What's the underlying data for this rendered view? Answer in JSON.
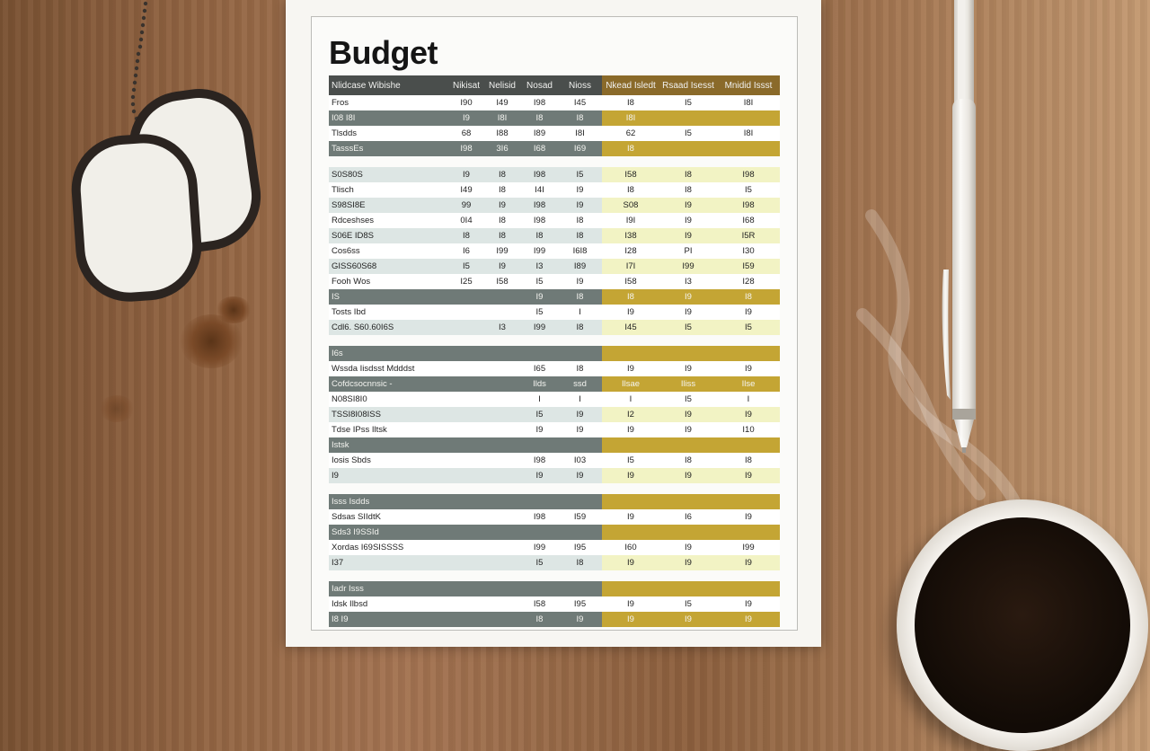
{
  "document": {
    "title": "Budget",
    "header": [
      "Nlidcase Wibishe",
      "Nikisat",
      "Nelisid",
      "Nosad",
      "Nioss",
      "Nkead Isledt",
      "Rsaad Isesst",
      "Mnidid Issst"
    ],
    "row_colors": {
      "white": "#ffffff",
      "light": "#dde6e4",
      "gray": "#6f7a77",
      "yellow_light": "#f2f3c4",
      "yellow_mid": "#e6e59a",
      "gold": "#c4a534"
    },
    "rows": [
      {
        "style": "white",
        "cells": [
          "Fros",
          "I90",
          "I49",
          "I98",
          "I45",
          "I8",
          "I5",
          "I8I"
        ]
      },
      {
        "style": "gray",
        "cells": [
          "I08 I8I",
          "I9",
          "I8I",
          "I8",
          "I8",
          "I8I",
          "",
          ""
        ]
      },
      {
        "style": "white",
        "cells": [
          "Tlsdds",
          "68",
          "I88",
          "I89",
          "I8I",
          "62",
          "I5",
          "I8I"
        ]
      },
      {
        "style": "gray",
        "cells": [
          "TasssEs",
          "I98",
          "3I6",
          "I68",
          "I69",
          "I8",
          "",
          ""
        ]
      },
      {
        "style": "spacer"
      },
      {
        "style": "light",
        "cells": [
          "S0S80S",
          "I9",
          "I8",
          "I98",
          "I5",
          "I58",
          "I8",
          "I98"
        ]
      },
      {
        "style": "white",
        "cells": [
          "Tlisch",
          "I49",
          "I8",
          "I4I",
          "I9",
          "I8",
          "I8",
          "I5"
        ]
      },
      {
        "style": "light",
        "cells": [
          "S98SI8E",
          "99",
          "I9",
          "I98",
          "I9",
          "S08",
          "I9",
          "I98"
        ]
      },
      {
        "style": "white",
        "cells": [
          "Rdceshses",
          "0I4",
          "I8",
          "I98",
          "I8",
          "I9I",
          "I9",
          "I68"
        ]
      },
      {
        "style": "light",
        "cells": [
          "S06E ID8S",
          "I8",
          "I8",
          "I8",
          "I8",
          "I38",
          "I9",
          "I5R"
        ]
      },
      {
        "style": "white",
        "cells": [
          "Cos6ss",
          "I6",
          "I99",
          "I99",
          "I6I8",
          "I28",
          "PI",
          "I30"
        ]
      },
      {
        "style": "light",
        "cells": [
          "GISS60S68",
          "I5",
          "I9",
          "I3",
          "I89",
          "I7I",
          "I99",
          "I59"
        ]
      },
      {
        "style": "white",
        "cells": [
          "Fooh Wos",
          "I25",
          "I58",
          "I5",
          "I9",
          "I58",
          "I3",
          "I28"
        ]
      },
      {
        "style": "gray",
        "cells": [
          "IS",
          "",
          "",
          "I9",
          "I8",
          "I8",
          "I9",
          "I8"
        ]
      },
      {
        "style": "white",
        "cells": [
          "Tosts Ibd",
          "",
          "",
          "I5",
          "I",
          "I9",
          "I9",
          "I9"
        ]
      },
      {
        "style": "light",
        "cells": [
          "Cdl6. S60.60I6S",
          "",
          "I3",
          "I99",
          "I8",
          "I45",
          "I5",
          "I5"
        ]
      },
      {
        "style": "spacer"
      },
      {
        "style": "gray",
        "cells": [
          "I6s",
          "",
          "",
          "",
          "",
          "",
          "",
          ""
        ]
      },
      {
        "style": "white",
        "cells": [
          "Wssda Iisdsst Mdddst",
          "",
          "",
          "I65",
          "I8",
          "I9",
          "I9",
          "I9"
        ]
      },
      {
        "style": "gray",
        "cells": [
          "Cofdcsocnnsic -",
          "",
          "",
          "Ilds",
          "ssd",
          "Ilsae",
          "Iliss",
          "Ilse"
        ]
      },
      {
        "style": "white",
        "cells": [
          "N08SI8I0",
          "",
          "",
          "I",
          "I",
          "I",
          "I5",
          "I"
        ]
      },
      {
        "style": "light",
        "cells": [
          "TSSI8I08ISS",
          "",
          "",
          "I5",
          "I9",
          "I2",
          "I9",
          "I9"
        ]
      },
      {
        "style": "white",
        "cells": [
          "Tdse IPss Iltsk",
          "",
          "",
          "I9",
          "I9",
          "I9",
          "I9",
          "I10"
        ]
      },
      {
        "style": "gray",
        "cells": [
          "Istsk",
          "",
          "",
          "",
          "",
          "",
          "",
          ""
        ]
      },
      {
        "style": "white",
        "cells": [
          "Iosis Sbds",
          "",
          "",
          "I98",
          "I03",
          "I5",
          "I8",
          "I8"
        ]
      },
      {
        "style": "light",
        "cells": [
          "I9",
          "",
          "",
          "I9",
          "I9",
          "I9",
          "I9",
          "I9"
        ]
      },
      {
        "style": "spacer"
      },
      {
        "style": "gray",
        "cells": [
          "Isss Isdds",
          "",
          "",
          "",
          "",
          "",
          "",
          ""
        ]
      },
      {
        "style": "white",
        "cells": [
          "Sdsas SIIdtK",
          "",
          "",
          "I98",
          "I59",
          "I9",
          "I6",
          "I9"
        ]
      },
      {
        "style": "gray",
        "cells": [
          "Sds3 I9SSId",
          "",
          "",
          "",
          "",
          "",
          "",
          ""
        ]
      },
      {
        "style": "white",
        "cells": [
          "Xordas I69SISSSS",
          "",
          "",
          "I99",
          "I95",
          "I60",
          "I9",
          "I99"
        ]
      },
      {
        "style": "light",
        "cells": [
          "I37",
          "",
          "",
          "I5",
          "I8",
          "I9",
          "I9",
          "I9"
        ]
      },
      {
        "style": "spacer"
      },
      {
        "style": "gray",
        "cells": [
          "Iadr Isss",
          "",
          "",
          "",
          "",
          "",
          "",
          ""
        ]
      },
      {
        "style": "white",
        "cells": [
          "Idsk Ilbsd",
          "",
          "",
          "I58",
          "I95",
          "I9",
          "I5",
          "I9"
        ]
      },
      {
        "style": "gray",
        "cells": [
          "I8 I9",
          "",
          "",
          "I8",
          "I9",
          "I9",
          "I9",
          "I9"
        ]
      }
    ]
  }
}
